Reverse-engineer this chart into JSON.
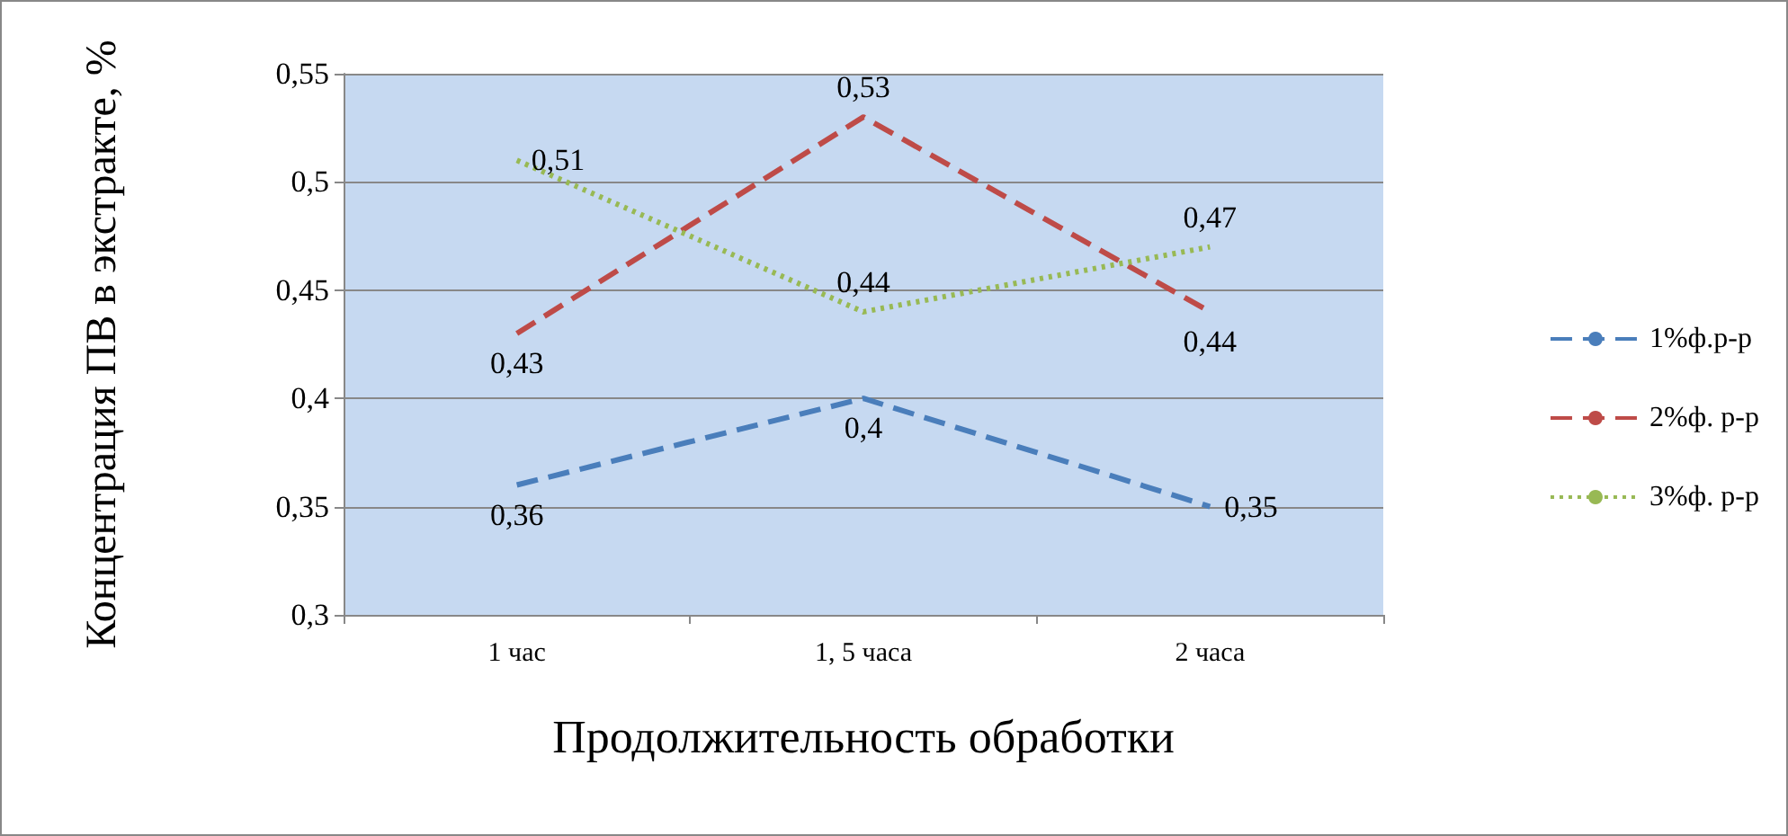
{
  "chart_data": {
    "type": "line",
    "xlabel": "Продолжительность обработки",
    "ylabel": "Концентрация ПВ в экстракте, %",
    "categories": [
      "1 час",
      "1, 5 часа",
      "2 часа"
    ],
    "series": [
      {
        "name": "1%ф.р-р",
        "color": "#4a7ebb",
        "values": [
          0.36,
          0.4,
          0.35
        ],
        "value_labels": [
          "0,36",
          "0,4",
          "0,35"
        ],
        "line_style": "dashed"
      },
      {
        "name": "2%ф. р-р",
        "color": "#be4b48",
        "values": [
          0.43,
          0.53,
          0.44
        ],
        "value_labels": [
          "0,43",
          "0,53",
          "0,44"
        ],
        "line_style": "dashed"
      },
      {
        "name": "3%ф. р-р",
        "color": "#98b954",
        "values": [
          0.51,
          0.44,
          0.47
        ],
        "value_labels": [
          "0,51",
          "0,44",
          "0,47"
        ],
        "line_style": "dotted"
      }
    ],
    "ylim": [
      0.3,
      0.55
    ],
    "yticks": [
      {
        "value": 0.3,
        "label": "0,3"
      },
      {
        "value": 0.35,
        "label": "0,35"
      },
      {
        "value": 0.4,
        "label": "0,4"
      },
      {
        "value": 0.45,
        "label": "0,45"
      },
      {
        "value": 0.5,
        "label": "0,5"
      },
      {
        "value": 0.55,
        "label": "0,55"
      }
    ],
    "grid": "y",
    "legend": "right",
    "marker": "none"
  }
}
